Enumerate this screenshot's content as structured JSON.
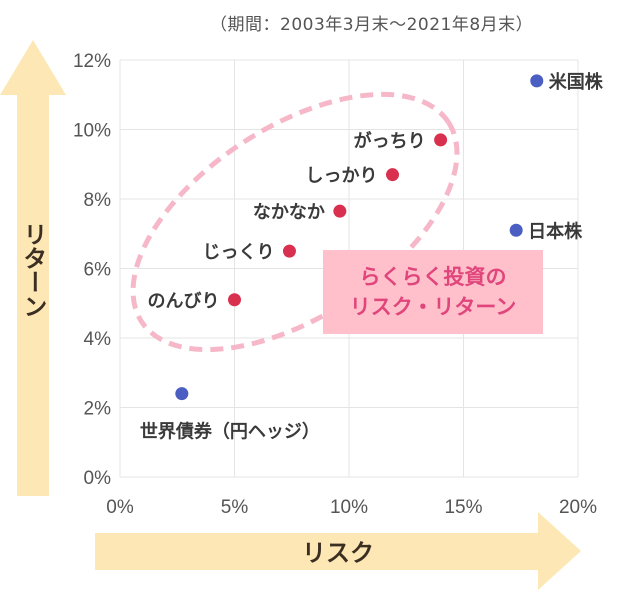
{
  "period_note": "（期間：2003年3月末〜2021年8月末）",
  "callout": {
    "line1": "らくらく投資の",
    "line2": "リスク・リターン"
  },
  "chart_data": {
    "type": "scatter",
    "xlabel": "リスク",
    "ylabel": "リターン",
    "xlim": [
      0,
      20
    ],
    "ylim": [
      0,
      12
    ],
    "x_ticks": [
      "0%",
      "5%",
      "10%",
      "15%",
      "20%"
    ],
    "y_ticks": [
      "0%",
      "2%",
      "4%",
      "6%",
      "8%",
      "10%",
      "12%"
    ],
    "grid": true,
    "points": [
      {
        "label": "米国株",
        "x": 18.2,
        "y": 11.4,
        "color": "#4a5fc1",
        "label_side": "right"
      },
      {
        "label": "日本株",
        "x": 17.3,
        "y": 7.1,
        "color": "#4a5fc1",
        "label_side": "right"
      },
      {
        "label": "世界債券（円ヘッジ）",
        "x": 2.7,
        "y": 2.4,
        "color": "#4a5fc1",
        "label_side": "below"
      },
      {
        "label": "がっちり",
        "x": 14.0,
        "y": 9.7,
        "color": "#d9304f",
        "label_side": "left"
      },
      {
        "label": "しっかり",
        "x": 11.9,
        "y": 8.7,
        "color": "#d9304f",
        "label_side": "left"
      },
      {
        "label": "なかなか",
        "x": 9.6,
        "y": 7.65,
        "color": "#d9304f",
        "label_side": "left"
      },
      {
        "label": "じっくり",
        "x": 7.4,
        "y": 6.5,
        "color": "#d9304f",
        "label_side": "left"
      },
      {
        "label": "のんびり",
        "x": 5.0,
        "y": 5.1,
        "color": "#d9304f",
        "label_side": "left"
      }
    ]
  },
  "colors": {
    "arrow_fill": "#fde8b5",
    "grid": "#e4e4e4",
    "ellipse": "#f6b8c8",
    "callout_bg": "#ffc0cb",
    "callout_text": "#e0457b"
  }
}
